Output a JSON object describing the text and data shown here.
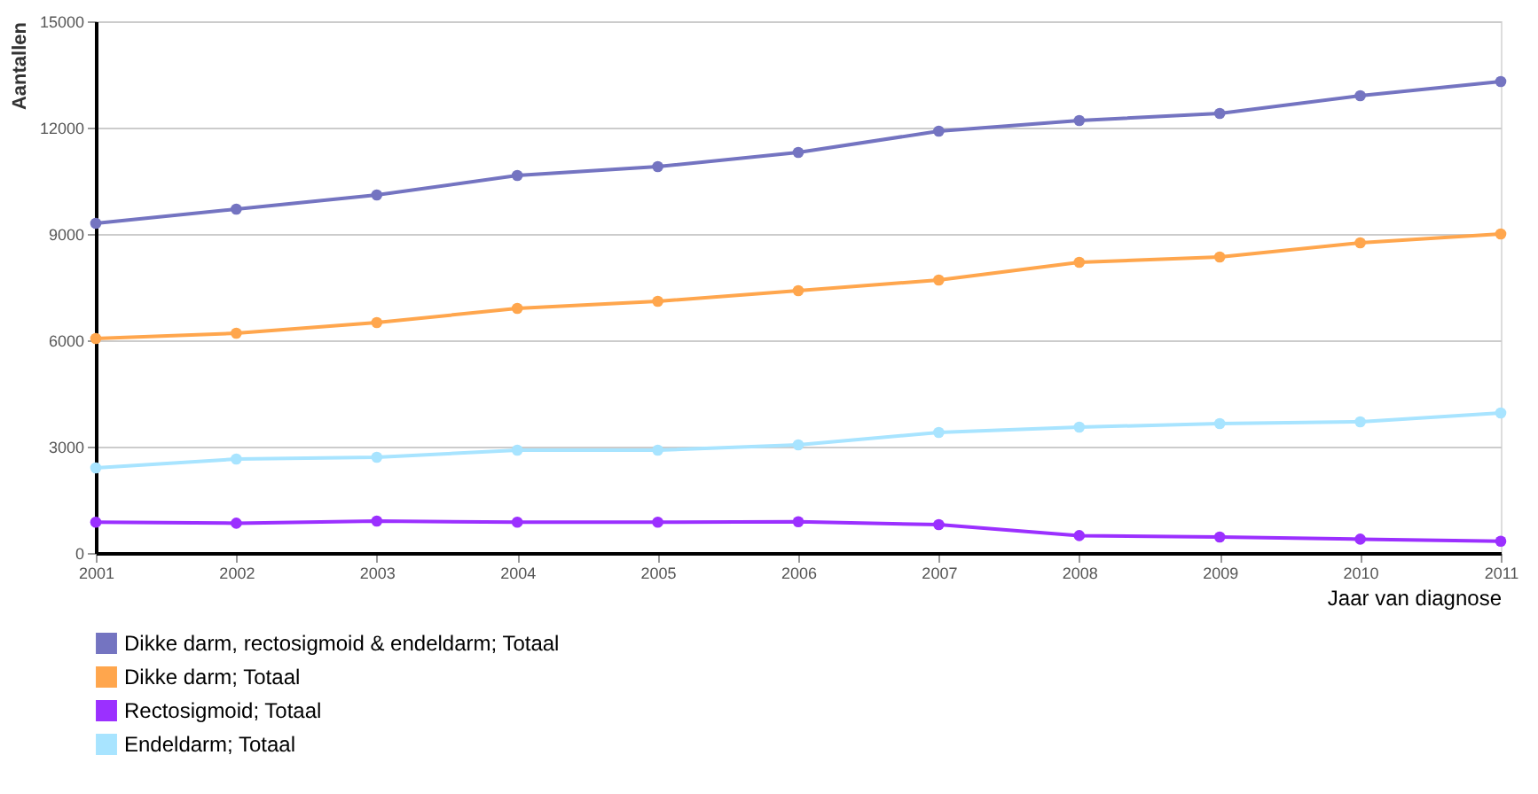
{
  "chart_data": {
    "type": "line",
    "xlabel": "Jaar van diagnose",
    "ylabel": "Aantallen",
    "x": [
      2001,
      2002,
      2003,
      2004,
      2005,
      2006,
      2007,
      2008,
      2009,
      2010,
      2011
    ],
    "xlim": [
      2001,
      2011
    ],
    "xticks": [
      2001,
      2002,
      2003,
      2004,
      2005,
      2006,
      2007,
      2008,
      2009,
      2010,
      2011
    ],
    "ylim": [
      0,
      15000
    ],
    "yticks": [
      0,
      3000,
      6000,
      9000,
      12000,
      15000
    ],
    "grid": "y",
    "marker": "circle",
    "line_style": "solid",
    "legend": "bottom left",
    "series": [
      {
        "name": "Dikke darm, rectosigmoid & endeldarm; Totaal",
        "color": "#7474c1",
        "values": [
          9300,
          9700,
          10100,
          10650,
          10900,
          11300,
          11900,
          12200,
          12400,
          12900,
          13300
        ]
      },
      {
        "name": "Dikke darm; Totaal",
        "color": "#ffa64d",
        "values": [
          6050,
          6200,
          6500,
          6900,
          7100,
          7400,
          7700,
          8200,
          8350,
          8750,
          9000
        ]
      },
      {
        "name": "Rectosigmoid; Totaal",
        "color": "#9b30ff",
        "values": [
          870,
          840,
          900,
          870,
          870,
          880,
          800,
          490,
          450,
          390,
          330
        ]
      },
      {
        "name": "Endeldarm; Totaal",
        "color": "#a8e4ff",
        "values": [
          2400,
          2650,
          2700,
          2900,
          2900,
          3050,
          3400,
          3550,
          3650,
          3700,
          3950
        ]
      }
    ]
  }
}
